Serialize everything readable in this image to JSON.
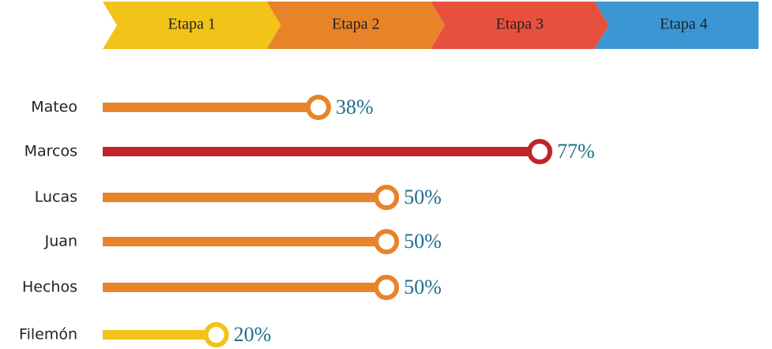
{
  "chart_data": {
    "type": "lollipop",
    "stages": [
      "Etapa 1",
      "Etapa 2",
      "Etapa 3",
      "Etapa 4"
    ],
    "stage_colors": [
      "#f2c318",
      "#e8832a",
      "#e8503e",
      "#3a97d4"
    ],
    "categories": [
      "Mateo",
      "Marcos",
      "Lucas",
      "Juan",
      "Hechos",
      "Filemón"
    ],
    "values": [
      38,
      77,
      50,
      50,
      50,
      20
    ],
    "value_labels": [
      "38%",
      "77%",
      "50%",
      "50%",
      "50%",
      "20%"
    ],
    "colors": [
      "#e8832a",
      "#c0232a",
      "#e8832a",
      "#e8832a",
      "#e8832a",
      "#f2c318"
    ],
    "xlim": [
      0,
      100
    ]
  }
}
